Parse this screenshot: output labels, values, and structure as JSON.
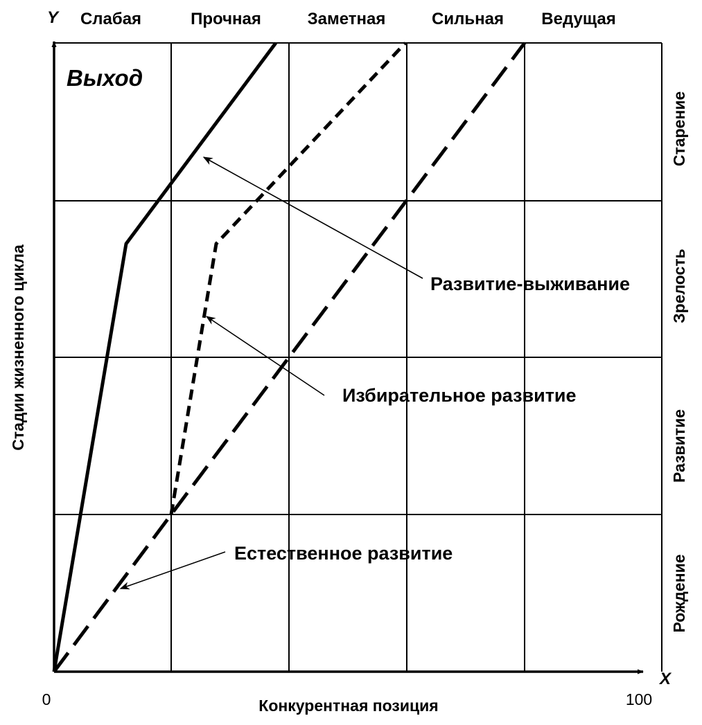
{
  "axes": {
    "y_letter": "Y",
    "x_letter": "X",
    "x_title": "Конкурентная позиция",
    "y_title": "Стадии жизненного цикла",
    "x_min_label": "0",
    "x_max_label": "100"
  },
  "competitive_positions": [
    "Слабая",
    "Прочная",
    "Заметная",
    "Сильная",
    "Ведущая"
  ],
  "life_stages": [
    "Старение",
    "Зрелость",
    "Развитие",
    "Рождение"
  ],
  "exit_label": "Выход",
  "strategies": [
    {
      "name": "Развитие-выживание",
      "style": "solid"
    },
    {
      "name": "Избирательное развитие",
      "style": "short-dash"
    },
    {
      "name": "Естественное развитие",
      "style": "long-dash"
    }
  ],
  "colors": {
    "ink": "#000000",
    "background": "#ffffff"
  }
}
